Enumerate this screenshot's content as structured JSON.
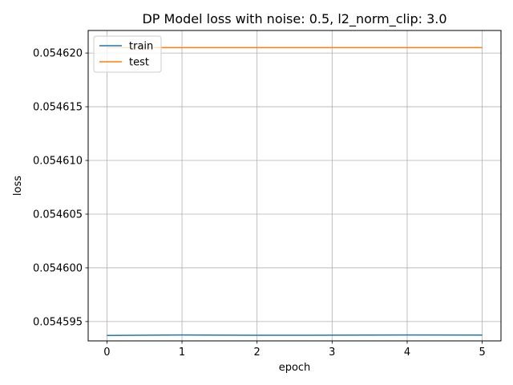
{
  "chart_data": {
    "type": "line",
    "title": "DP Model loss with noise: 0.5, l2_norm_clip: 3.0",
    "xlabel": "epoch",
    "ylabel": "loss",
    "x": [
      0,
      1,
      2,
      3,
      4,
      5
    ],
    "xlim": [
      -0.25,
      5.25
    ],
    "ylim": [
      0.0545932,
      0.0546221
    ],
    "xticks": [
      "0",
      "1",
      "2",
      "3",
      "4",
      "5"
    ],
    "yticks": [
      {
        "value": 0.054595,
        "label": "0.054595"
      },
      {
        "value": 0.0546,
        "label": "0.054600"
      },
      {
        "value": 0.054605,
        "label": "0.054605"
      },
      {
        "value": 0.05461,
        "label": "0.054610"
      },
      {
        "value": 0.054615,
        "label": "0.054615"
      },
      {
        "value": 0.05462,
        "label": "0.054620"
      }
    ],
    "grid": true,
    "legend_position": "top-left",
    "series": [
      {
        "name": "train",
        "color": "#1f77b4",
        "values": [
          0.0545937,
          0.05459375,
          0.05459372,
          0.05459373,
          0.05459375,
          0.05459374
        ]
      },
      {
        "name": "test",
        "color": "#ff7f0e",
        "values": [
          0.0546205,
          0.0546205,
          0.0546205,
          0.0546205,
          0.0546205,
          0.0546205
        ]
      }
    ]
  }
}
